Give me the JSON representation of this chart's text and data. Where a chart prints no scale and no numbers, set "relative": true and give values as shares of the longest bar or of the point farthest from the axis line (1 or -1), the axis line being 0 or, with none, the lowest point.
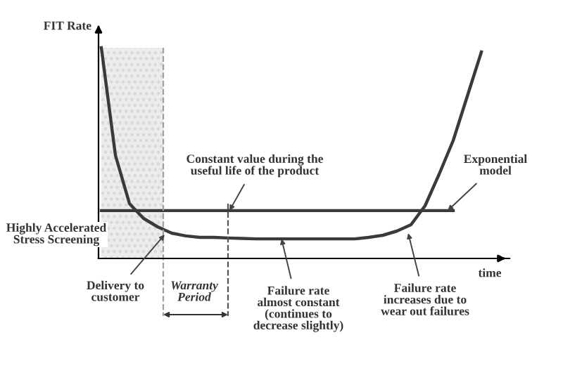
{
  "chart_data": {
    "type": "line",
    "relative": true,
    "ylabel": "FIT Rate",
    "xlabel": "time",
    "categories": [
      null,
      null,
      null,
      null,
      null,
      null,
      null,
      null,
      null,
      null,
      null,
      null,
      null,
      null,
      null,
      null,
      null,
      null,
      null,
      null,
      null,
      null,
      null,
      null,
      null,
      null,
      null,
      null
    ],
    "series": [
      {
        "color": "#3a3a3a",
        "values": [
          1.0,
          0.49,
          0.26,
          0.19,
          0.15,
          0.12,
          0.107,
          0.1,
          0.1,
          0.097,
          0.095,
          0.093,
          0.093,
          0.093,
          0.093,
          0.093,
          0.093,
          0.093,
          0.093,
          0.1,
          0.11,
          0.13,
          0.16,
          0.25,
          0.4,
          0.56,
          0.77,
          0.98
        ]
      },
      {
        "color": "#3a3a3a",
        "values": [
          0.227,
          0.227,
          0.227,
          0.227,
          0.227,
          0.227,
          0.227,
          0.227,
          0.227,
          0.227,
          0.227,
          0.227,
          0.227,
          0.227,
          0.227,
          0.227,
          0.227,
          0.227,
          0.227,
          0.227,
          0.227,
          0.227,
          0.227,
          0.227,
          0.227,
          0.227,
          null,
          null
        ]
      }
    ],
    "annotations": [
      "Constant value during the\nuseful life of the product",
      "Exponential\nmodel",
      "Highly Accelerated\nStress Screening",
      "Delivery to\ncustomer",
      "Warranty\nPeriod",
      "Failure rate\nalmost constant\n(continues to\ndecrease slightly)",
      "Failure rate\nincreases due to\nwear out failures"
    ],
    "marker": "none",
    "line_style": "solid"
  }
}
